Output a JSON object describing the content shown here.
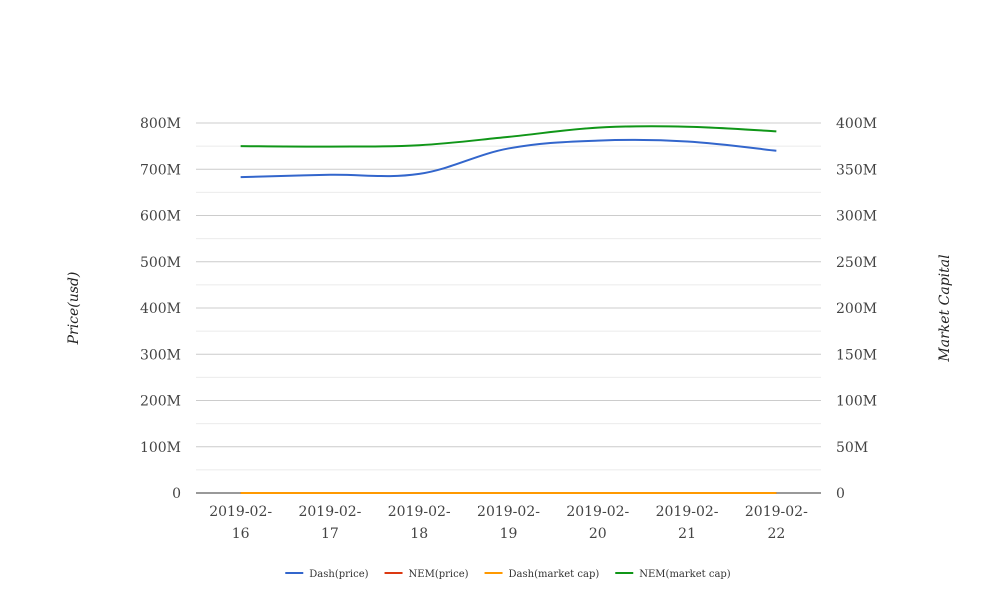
{
  "chart_data": {
    "type": "line",
    "categories": [
      "2019-02-16",
      "2019-02-17",
      "2019-02-18",
      "2019-02-19",
      "2019-02-20",
      "2019-02-21",
      "2019-02-22"
    ],
    "category_lines": [
      [
        "2019-02-",
        "16"
      ],
      [
        "2019-02-",
        "17"
      ],
      [
        "2019-02-",
        "18"
      ],
      [
        "2019-02-",
        "19"
      ],
      [
        "2019-02-",
        "20"
      ],
      [
        "2019-02-",
        "21"
      ],
      [
        "2019-02-",
        "22"
      ]
    ],
    "y_left": {
      "label": "Price(usd)",
      "range": [
        0,
        800000000
      ],
      "ticks": [
        {
          "value": 0,
          "label": "0"
        },
        {
          "value": 100000000,
          "label": "100M"
        },
        {
          "value": 200000000,
          "label": "200M"
        },
        {
          "value": 300000000,
          "label": "300M"
        },
        {
          "value": 400000000,
          "label": "400M"
        },
        {
          "value": 500000000,
          "label": "500M"
        },
        {
          "value": 600000000,
          "label": "600M"
        },
        {
          "value": 700000000,
          "label": "700M"
        },
        {
          "value": 800000000,
          "label": "800M"
        }
      ]
    },
    "y_right": {
      "label": "Market Capital",
      "range": [
        0,
        400000000
      ],
      "ticks": [
        {
          "value": 0,
          "label": "0"
        },
        {
          "value": 50000000,
          "label": "50M"
        },
        {
          "value": 100000000,
          "label": "100M"
        },
        {
          "value": 150000000,
          "label": "150M"
        },
        {
          "value": 200000000,
          "label": "200M"
        },
        {
          "value": 250000000,
          "label": "250M"
        },
        {
          "value": 300000000,
          "label": "300M"
        },
        {
          "value": 350000000,
          "label": "350M"
        },
        {
          "value": 400000000,
          "label": "400M"
        }
      ]
    },
    "grid": true,
    "legend_position": "bottom",
    "series": [
      {
        "name": "Dash(price)",
        "axis": "left",
        "color": "#3366cc",
        "values": [
          683000000,
          688000000,
          690000000,
          745000000,
          762000000,
          760000000,
          740000000
        ]
      },
      {
        "name": "NEM(price)",
        "axis": "left",
        "color": "#dc3912",
        "values": [
          0.05,
          0.05,
          0.05,
          0.05,
          0.05,
          0.05,
          0.05
        ]
      },
      {
        "name": "Dash(market cap)",
        "axis": "left",
        "color": "#ff9900",
        "values": [
          70,
          70,
          70,
          78,
          80,
          80,
          78
        ]
      },
      {
        "name": "NEM(market cap)",
        "axis": "right",
        "color": "#109618",
        "values": [
          375000000,
          374500000,
          376000000,
          385000000,
          395000000,
          396000000,
          391000000
        ]
      }
    ]
  }
}
